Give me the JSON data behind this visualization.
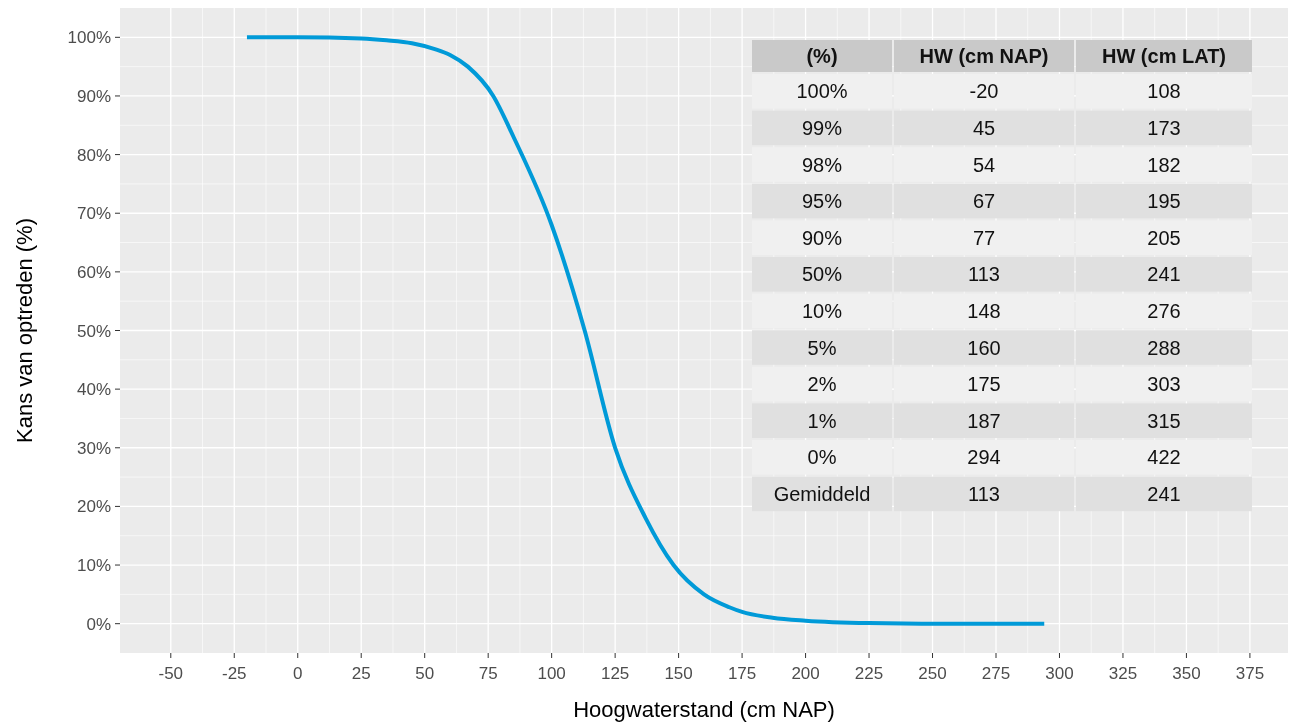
{
  "chart_data": {
    "type": "line",
    "xlabel": "Hoogwaterstand (cm NAP)",
    "ylabel": "Kans van optreden (%)",
    "xlim": [
      -70,
      390
    ],
    "xticks": [
      -50,
      -25,
      0,
      25,
      50,
      75,
      100,
      125,
      150,
      175,
      200,
      225,
      250,
      275,
      300,
      325,
      350,
      375
    ],
    "ylim": [
      -5,
      105
    ],
    "yticks": [
      {
        "value": 0,
        "label": "0%"
      },
      {
        "value": 10,
        "label": "10%"
      },
      {
        "value": 20,
        "label": "20%"
      },
      {
        "value": 30,
        "label": "30%"
      },
      {
        "value": 40,
        "label": "40%"
      },
      {
        "value": 50,
        "label": "50%"
      },
      {
        "value": 60,
        "label": "60%"
      },
      {
        "value": 70,
        "label": "70%"
      },
      {
        "value": 80,
        "label": "80%"
      },
      {
        "value": 90,
        "label": "90%"
      },
      {
        "value": 100,
        "label": "100%"
      }
    ],
    "grid": true,
    "series": [
      {
        "color": "#009ad8",
        "x": [
          -20,
          0,
          25,
          35,
          45,
          54,
          60,
          67,
          77,
          85,
          100,
          113,
          125,
          137,
          148,
          160,
          170,
          175,
          187,
          200,
          225,
          250,
          294
        ],
        "values": [
          100,
          100,
          99.8,
          99.5,
          99,
          98,
          97,
          95,
          90,
          83,
          68,
          50,
          30,
          18,
          10,
          5,
          2.8,
          2,
          1,
          0.5,
          0.1,
          0,
          0
        ]
      }
    ],
    "annotations": [
      "(%)",
      "HW (cm NAP)",
      "HW (cm LAT)",
      "100%",
      "-20",
      "108",
      "99%",
      "45",
      "173",
      "98%",
      "54",
      "182",
      "95%",
      "67",
      "195",
      "90%",
      "77",
      "205",
      "50%",
      "113",
      "241",
      "10%",
      "148",
      "276",
      "5%",
      "160",
      "288",
      "2%",
      "175",
      "303",
      "1%",
      "187",
      "315",
      "0%",
      "294",
      "422",
      "Gemiddeld",
      "113",
      "241"
    ]
  }
}
